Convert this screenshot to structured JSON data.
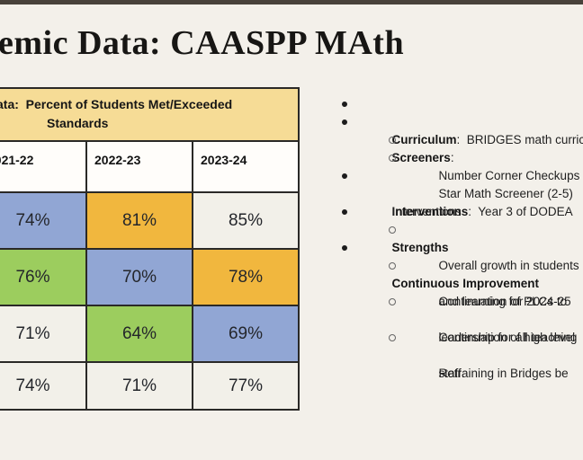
{
  "title": "emic Data: CAASPP MAth",
  "table": {
    "banner_line1": "ata:  Percent of Students Met/Exceeded",
    "banner_line2": "Standards",
    "columns": [
      "2021-22",
      "2022-23",
      "2023-24"
    ],
    "rows": [
      {
        "cells": [
          {
            "value": "74%",
            "bg": "blue"
          },
          {
            "value": "81%",
            "bg": "orange"
          },
          {
            "value": "85%",
            "bg": "plain"
          }
        ]
      },
      {
        "cells": [
          {
            "value": "76%",
            "bg": "green"
          },
          {
            "value": "70%",
            "bg": "blue"
          },
          {
            "value": "78%",
            "bg": "orange"
          }
        ]
      },
      {
        "cells": [
          {
            "value": "71%",
            "bg": "plain"
          },
          {
            "value": "64%",
            "bg": "green"
          },
          {
            "value": "69%",
            "bg": "blue"
          }
        ]
      },
      {
        "cells": [
          {
            "value": "74%",
            "bg": "plain"
          },
          {
            "value": "71%",
            "bg": "plain"
          },
          {
            "value": "77%",
            "bg": "plain"
          }
        ]
      }
    ]
  },
  "notes": {
    "items": [
      {
        "label": "Curriculum",
        "sep": ":  ",
        "text": "BRIDGES math curriculum"
      },
      {
        "label": "Screeners",
        "sep": ":",
        "text": ""
      },
      {
        "text": "Number Corner Checkups"
      },
      {
        "text": "Star Math Screener (2-5)"
      },
      {
        "label": "Interventions",
        "sep": ":  ",
        "text": "Year 3 of DODEA"
      },
      {
        "text": "Interventions"
      },
      {
        "label": "Strengths",
        "sep": "",
        "text": ""
      },
      {
        "text": "Overall growth in students"
      },
      {
        "label": "Continuous Improvement",
        "sep": "",
        "text": ""
      },
      {
        "text": "Continuation of PLCs to "
      },
      {
        "text": "and learning for 2024-25"
      },
      {
        "text": "Continuation of high level"
      },
      {
        "text": "leadership for all teaching"
      },
      {
        "text": "Retraining in Bridges be"
      },
      {
        "text": "staff."
      }
    ]
  },
  "palette": {
    "background": "#f3f0ea",
    "top_edge": "#48423b",
    "table_border": "#2a2927",
    "banner_yellow": "#f6dc96",
    "header_white": "#fffdfa",
    "cell_plain": "#f2f0e9",
    "cell_blue": "#91a6d4",
    "cell_orange": "#f1b73e",
    "cell_green": "#9ccd5e"
  }
}
